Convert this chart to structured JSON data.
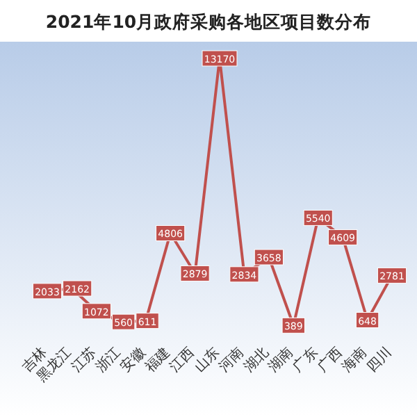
{
  "chart_data": {
    "type": "line",
    "title": "2021年10月政府采购各地区项目数分布",
    "categories": [
      "吉林",
      "黑龙江",
      "江苏",
      "浙江",
      "安徽",
      "福建",
      "江西",
      "山东",
      "河南",
      "湖北",
      "湖南",
      "广东",
      "广西",
      "海南",
      "四川"
    ],
    "series": [
      {
        "color": "#c0504d",
        "values": [
          2033,
          2162,
          1072,
          560,
          611,
          4806,
          2879,
          13170,
          2834,
          3658,
          389,
          5540,
          4609,
          648,
          2781
        ]
      }
    ],
    "data_labels": true,
    "line_style": "solid",
    "marker": "square"
  }
}
